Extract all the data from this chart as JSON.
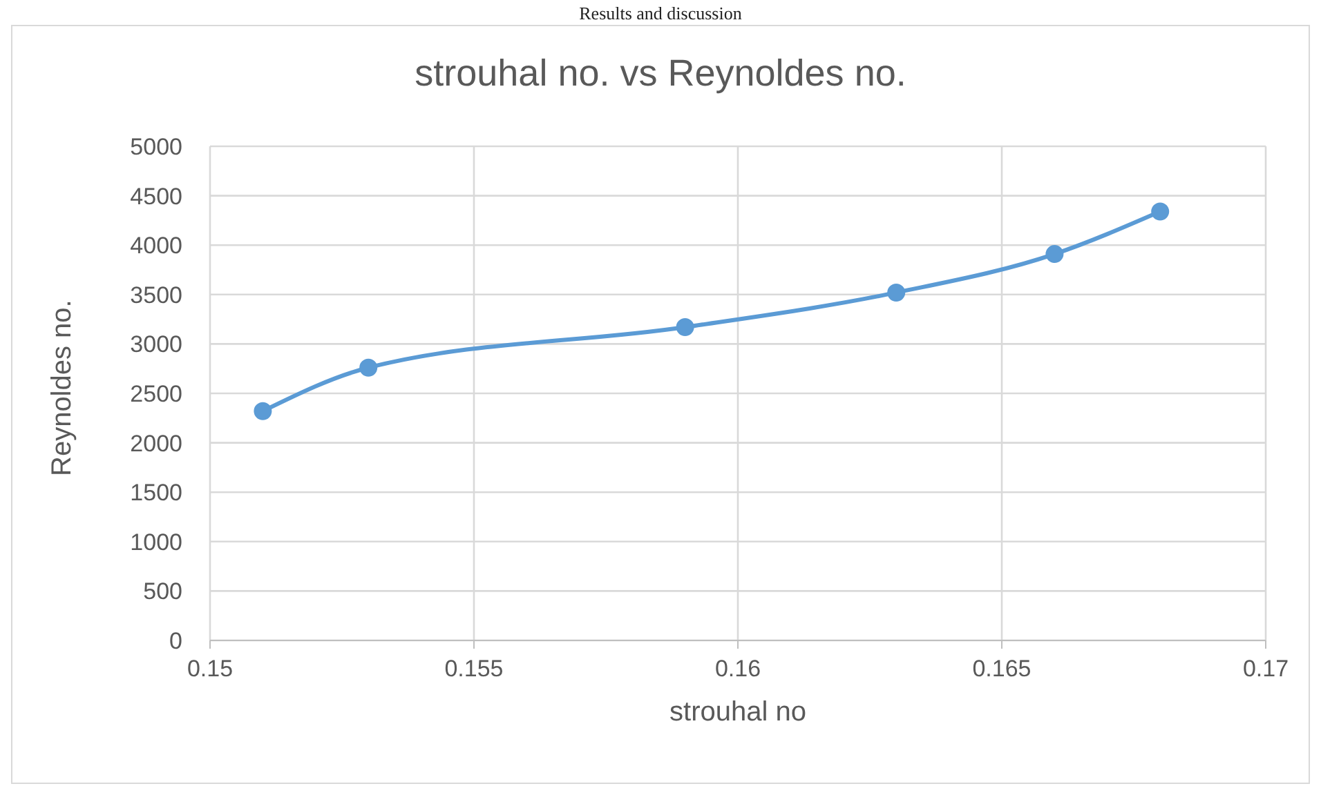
{
  "chart_data": {
    "type": "line",
    "title": "strouhal no. vs Reynoldes no.",
    "xlabel": "strouhal no",
    "ylabel": "Reynoldes no.",
    "annotations": [
      "Results and discussion"
    ],
    "x": [
      0.151,
      0.153,
      0.159,
      0.163,
      0.166,
      0.168
    ],
    "series": [
      {
        "color": "#5b9bd5",
        "values": [
          2320,
          2760,
          3170,
          3520,
          3910,
          4340
        ]
      }
    ],
    "xlim": [
      0.15,
      0.17
    ],
    "xticks": [
      0.15,
      0.155,
      0.16,
      0.165,
      0.17
    ],
    "ylim": [
      0,
      5000
    ],
    "yticks": [
      0,
      500,
      1000,
      1500,
      2000,
      2500,
      3000,
      3500,
      4000,
      4500,
      5000
    ],
    "grid": true,
    "legend": false,
    "marker": "circle",
    "line_style": "solid"
  }
}
